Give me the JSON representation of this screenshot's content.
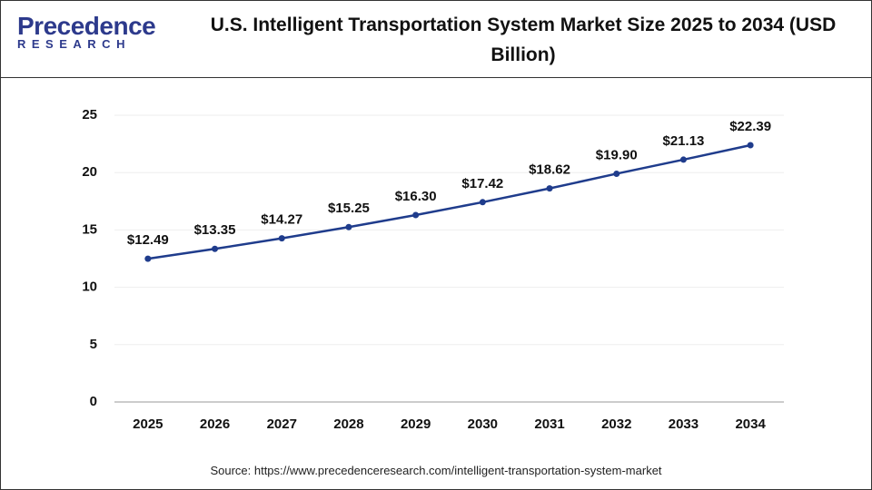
{
  "chart_data": {
    "type": "line",
    "title": "U.S. Intelligent Transportation System Market Size 2025 to 2034 (USD Billion)",
    "logo_text": "Precedence",
    "logo_subtext": "RESEARCH",
    "source": "Source: https://www.precedenceresearch.com/intelligent-transportation-system-market",
    "categories": [
      "2025",
      "2026",
      "2027",
      "2028",
      "2029",
      "2030",
      "2031",
      "2032",
      "2033",
      "2034"
    ],
    "series": [
      {
        "color": "#1f3c8c",
        "values": [
          12.49,
          13.35,
          14.27,
          15.25,
          16.3,
          17.42,
          18.62,
          19.9,
          21.13,
          22.39
        ],
        "value_labels": [
          "$12.49",
          "$13.35",
          "$14.27",
          "$15.25",
          "$16.30",
          "$17.42",
          "$18.62",
          "$19.90",
          "$21.13",
          "$22.39"
        ]
      }
    ],
    "ylim": [
      0,
      25
    ],
    "yticks": [
      0,
      5,
      10,
      15,
      20,
      25
    ],
    "grid": true
  }
}
